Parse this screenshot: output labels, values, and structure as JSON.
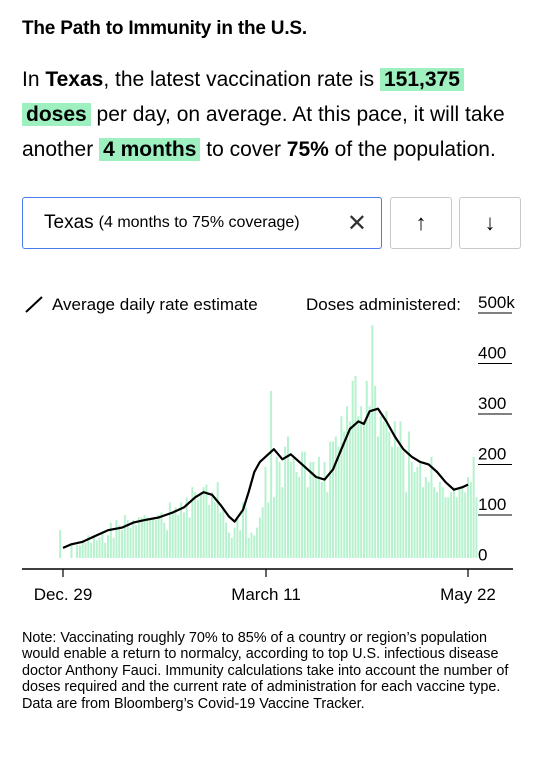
{
  "title": "The Path to Immunity in the U.S.",
  "summary": {
    "p1": "In ",
    "location": "Texas",
    "p2": ", the latest vaccination rate is ",
    "rate": "151,375",
    "rate_unit": "doses",
    "p3": " per day, on average. At this pace, it will take another ",
    "time": "4 months",
    "p4": " to cover ",
    "coverage": "75%",
    "p5": " of the population."
  },
  "selector": {
    "value": "Texas",
    "detail": "(4 months to 75% coverage)",
    "clear_symbol": "✕",
    "up_symbol": "↑",
    "down_symbol": "↓"
  },
  "colors": {
    "bars": "#b5f2cd",
    "line": "#000000",
    "highlight": "#9ff0c0",
    "selector_border": "#4a7cf0"
  },
  "chart_data": {
    "type": "bar",
    "legend_label": "Average daily rate estimate",
    "axis_title": "Doses administered:",
    "y_ticks": [
      "500k",
      "400",
      "300",
      "200",
      "100",
      "0"
    ],
    "ylim": [
      0,
      500000
    ],
    "x_ticks": [
      "Dec. 29",
      "March 11",
      "May 22"
    ],
    "x_range": [
      "2020-12-29",
      "2021-05-22"
    ],
    "bar_start_date": "2020-12-25",
    "series": [
      {
        "type": "bar",
        "values": [
          0,
          0,
          0,
          55000,
          0,
          0,
          0,
          30000,
          0,
          25000,
          25000,
          35000,
          30000,
          45000,
          30000,
          45000,
          35000,
          40000,
          50000,
          30000,
          45000,
          70000,
          40000,
          75000,
          65000,
          55000,
          85000,
          75000,
          60000,
          75000,
          65000,
          80000,
          80000,
          85000,
          80000,
          75000,
          80000,
          75000,
          85000,
          90000,
          70000,
          55000,
          110000,
          90000,
          100000,
          85000,
          110000,
          90000,
          120000,
          80000,
          140000,
          130000,
          115000,
          130000,
          140000,
          145000,
          105000,
          130000,
          110000,
          150000,
          90000,
          100000,
          70000,
          50000,
          40000,
          60000,
          80000,
          55000,
          110000,
          100000,
          40000,
          50000,
          45000,
          60000,
          80000,
          100000,
          180000,
          110000,
          330000,
          120000,
          200000,
          190000,
          140000,
          220000,
          240000,
          190000,
          200000,
          170000,
          160000,
          210000,
          210000,
          140000,
          190000,
          190000,
          160000,
          200000,
          150000,
          190000,
          130000,
          230000,
          230000,
          240000,
          220000,
          280000,
          250000,
          300000,
          270000,
          350000,
          360000,
          280000,
          300000,
          270000,
          350000,
          300000,
          460000,
          340000,
          240000,
          280000,
          270000,
          290000,
          250000,
          220000,
          270000,
          220000,
          270000,
          210000,
          130000,
          250000,
          190000,
          170000,
          180000,
          190000,
          140000,
          160000,
          150000,
          200000,
          140000,
          130000,
          150000,
          140000,
          120000,
          120000,
          130000,
          140000,
          120000,
          140000,
          140000,
          130000,
          160000,
          150000,
          200000,
          120000
        ]
      },
      {
        "type": "line",
        "name": "Average daily rate estimate",
        "points": [
          [
            "2020-12-29",
            20000
          ],
          [
            "2021-01-01",
            27000
          ],
          [
            "2021-01-05",
            32000
          ],
          [
            "2021-01-10",
            45000
          ],
          [
            "2021-01-14",
            55000
          ],
          [
            "2021-01-19",
            60000
          ],
          [
            "2021-01-23",
            70000
          ],
          [
            "2021-01-27",
            75000
          ],
          [
            "2021-02-01",
            80000
          ],
          [
            "2021-02-06",
            90000
          ],
          [
            "2021-02-10",
            100000
          ],
          [
            "2021-02-14",
            120000
          ],
          [
            "2021-02-17",
            130000
          ],
          [
            "2021-02-20",
            125000
          ],
          [
            "2021-02-23",
            105000
          ],
          [
            "2021-02-26",
            82000
          ],
          [
            "2021-02-28",
            72000
          ],
          [
            "2021-03-03",
            95000
          ],
          [
            "2021-03-05",
            130000
          ],
          [
            "2021-03-07",
            170000
          ],
          [
            "2021-03-09",
            190000
          ],
          [
            "2021-03-11",
            200000
          ],
          [
            "2021-03-14",
            215000
          ],
          [
            "2021-03-17",
            195000
          ],
          [
            "2021-03-20",
            205000
          ],
          [
            "2021-03-23",
            190000
          ],
          [
            "2021-03-26",
            175000
          ],
          [
            "2021-03-29",
            160000
          ],
          [
            "2021-04-01",
            155000
          ],
          [
            "2021-04-04",
            175000
          ],
          [
            "2021-04-07",
            215000
          ],
          [
            "2021-04-10",
            255000
          ],
          [
            "2021-04-13",
            270000
          ],
          [
            "2021-04-15",
            265000
          ],
          [
            "2021-04-17",
            290000
          ],
          [
            "2021-04-20",
            295000
          ],
          [
            "2021-04-23",
            270000
          ],
          [
            "2021-04-26",
            240000
          ],
          [
            "2021-04-29",
            215000
          ],
          [
            "2021-05-02",
            200000
          ],
          [
            "2021-05-05",
            190000
          ],
          [
            "2021-05-08",
            185000
          ],
          [
            "2021-05-11",
            170000
          ],
          [
            "2021-05-14",
            150000
          ],
          [
            "2021-05-17",
            135000
          ],
          [
            "2021-05-20",
            140000
          ],
          [
            "2021-05-22",
            145000
          ]
        ]
      }
    ]
  },
  "note": "Note: Vaccinating roughly 70% to 85% of a country or region’s population would enable a return to normalcy, according to top U.S. infectious disease doctor Anthony Fauci. Immunity calculations take into account the number of doses required and the current rate of administration for each vaccine type. Data are from Bloomberg’s Covid-19 Vaccine Tracker."
}
